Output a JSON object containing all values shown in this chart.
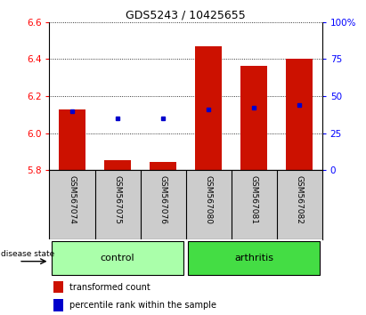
{
  "title": "GDS5243 / 10425655",
  "samples": [
    "GSM567074",
    "GSM567075",
    "GSM567076",
    "GSM567080",
    "GSM567081",
    "GSM567082"
  ],
  "groups": [
    "control",
    "control",
    "control",
    "arthritis",
    "arthritis",
    "arthritis"
  ],
  "bar_bottom": 5.8,
  "bar_tops": [
    6.13,
    5.855,
    5.845,
    6.47,
    6.365,
    6.4
  ],
  "blue_y": [
    6.12,
    6.08,
    6.08,
    6.13,
    6.135,
    6.15
  ],
  "ylim": [
    5.8,
    6.6
  ],
  "y_ticks_left": [
    5.8,
    6.0,
    6.2,
    6.4,
    6.6
  ],
  "y_ticks_right": [
    0,
    25,
    50,
    75,
    100
  ],
  "bar_color": "#cc1100",
  "blue_color": "#0000cc",
  "control_color": "#aaffaa",
  "arthritis_color": "#44dd44",
  "sample_bg_color": "#cccccc",
  "legend_red_label": "transformed count",
  "legend_blue_label": "percentile rank within the sample",
  "disease_state_label": "disease state",
  "bar_width": 0.6,
  "title_fontsize": 9,
  "tick_fontsize": 7.5,
  "sample_fontsize": 6.5,
  "group_fontsize": 8,
  "legend_fontsize": 7
}
